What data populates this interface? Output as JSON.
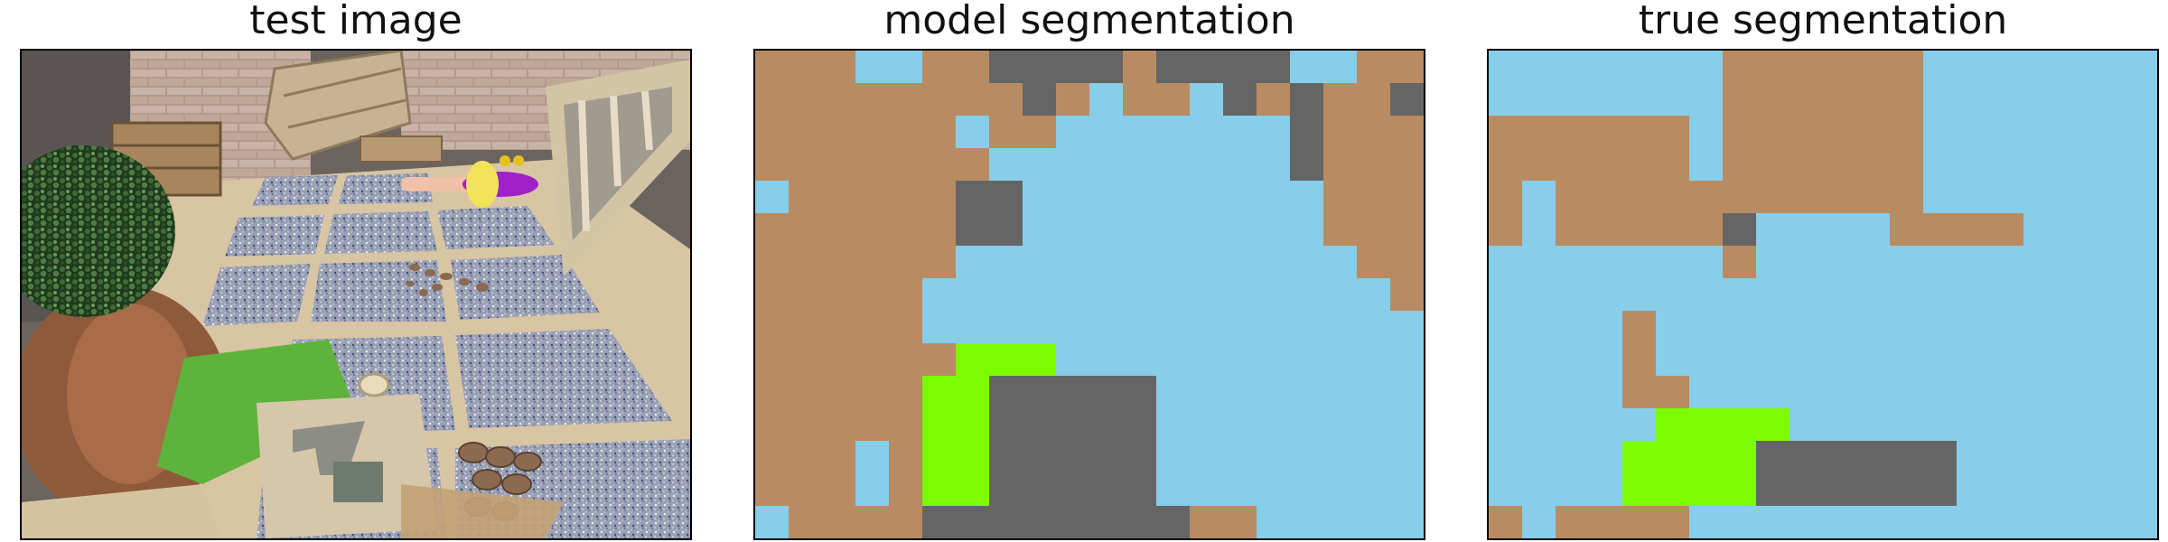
{
  "panels": {
    "test": {
      "title": "test image"
    },
    "model": {
      "title": "model segmentation"
    },
    "true": {
      "title": "true segmentation"
    }
  },
  "palette": {
    "B": "#B98B62",
    "L": "#87CEEB",
    "G": "#656565",
    "V": "#7CFC00"
  },
  "model_grid": [
    "BBBLLBBGGGGBGGGGLLBB",
    "BBBBBBBBGBLBBLGBGBBG",
    "BBBBBBLBBLLLLLLLGBBB",
    "BBBBBBBLLLLLLLLLGBBB",
    "LBBBBBGGLLLLLLLLLBBB",
    "BBBBBBGGLLLLLLLLLBBB",
    "BBBBBBLLLLLLLLLLLLBB",
    "BBBBBLLLLLLLLLLLLLLB",
    "BBBBBLLLLLLLLLLLLLLL",
    "BBBBBBVVVLLLLLLLLLLL",
    "BBBBBVVGGGGGLLLLLLLL",
    "BBBBBVVGGGGGLLLLLLLL",
    "BBBLBVVGGGGGLLLLLLLL",
    "BBBLBVVGGGGGLLLLLLLL",
    "LBBBBGGGGGGGGBBLLLLL"
  ],
  "true_grid": [
    "LLLLLLLBBBBBBLLLLLLL",
    "LLLLLLLBBBBBBLLLLLLL",
    "BBBBBBLBBBBBBLLLLLLL",
    "BBBBBBLBBBBBBLLLLLLL",
    "BLBBBBBBBBBBBLLLLLLL",
    "BLBBBBBGLLLLBBBBLLLL",
    "LLLLLLLBLLLLLLLLLLLL",
    "LLLLLLLLLLLLLLLLLLLL",
    "LLLLBLLLLLLLLLLLLLLL",
    "LLLLBLLLLLLLLLLLLLLL",
    "LLLLBBLLLLLLLLLLLLLL",
    "LLLLLVVVVLLLLLLLLLLL",
    "LLLLVVVVGGGGGGLLLLLL",
    "LLLLVVVVGGGGGGLLLLLL",
    "BLBBBBLLLLLLLLLLLLLL"
  ]
}
